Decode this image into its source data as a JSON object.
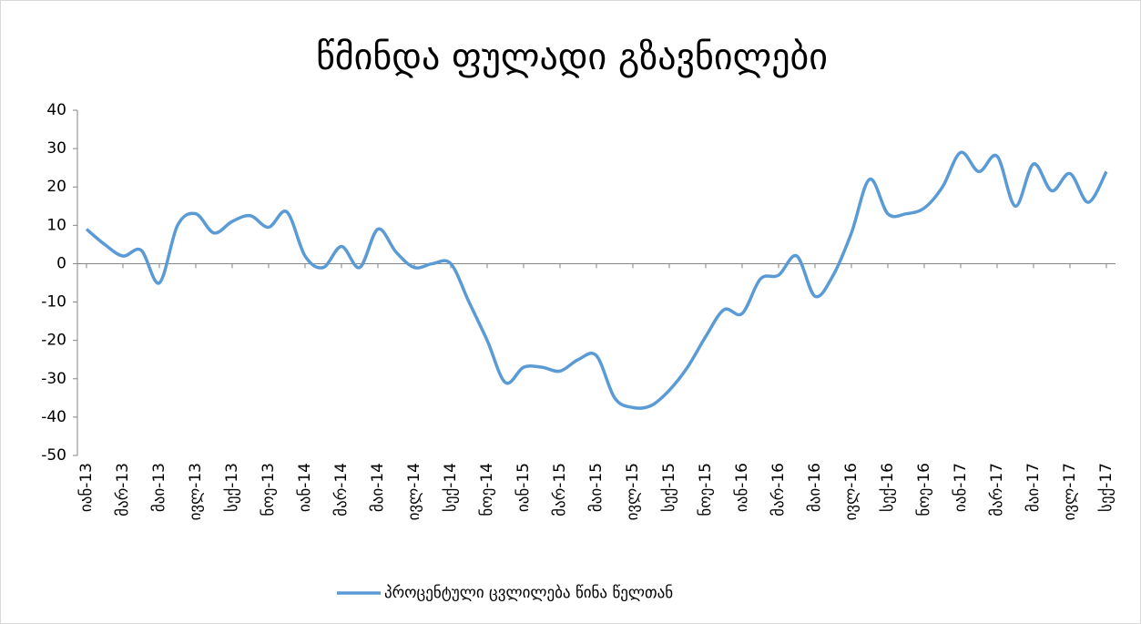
{
  "chart_data": {
    "type": "line",
    "title": "წმინდა ფულადი გზავნილები",
    "categories": [
      "იან-13",
      null,
      "მარ-13",
      null,
      "მაი-13",
      null,
      "ივლ-13",
      null,
      "სექ-13",
      null,
      "ნოე-13",
      null,
      "იან-14",
      null,
      "მარ-14",
      null,
      "მაი-14",
      null,
      "ივლ-14",
      null,
      "სექ-14",
      null,
      "ნოე-14",
      null,
      "იან-15",
      null,
      "მარ-15",
      null,
      "მაი-15",
      null,
      "ივლ-15",
      null,
      "სექ-15",
      null,
      "ნოე-15",
      null,
      "იან-16",
      null,
      "მარ-16",
      null,
      "მაი-16",
      null,
      "ივლ-16",
      null,
      "სექ-16",
      null,
      "ნოე-16",
      null,
      "იან-17",
      null,
      "მარ-17",
      null,
      "მაი-17",
      null,
      "ივლ-17",
      null,
      "სექ-17"
    ],
    "series": [
      {
        "name": "პროცენტული ცვლილება წინა წელთან",
        "color": "#5b9bd5",
        "values": [
          9,
          5,
          2,
          3.5,
          -5,
          10,
          13,
          8,
          11,
          12.5,
          9.5,
          13.5,
          2,
          -1,
          4.5,
          -1,
          9,
          3,
          -1,
          0,
          0,
          -10,
          -20,
          -31,
          -27,
          -27,
          -28,
          -25,
          -24,
          -35,
          -37.5,
          -37,
          -33,
          -27,
          -19,
          -12,
          -13,
          -4,
          -3,
          2,
          -8.5,
          -3,
          8,
          22,
          13,
          13,
          14.5,
          20,
          29,
          24,
          28,
          15,
          26,
          19,
          23.5,
          16,
          24
        ]
      }
    ],
    "ylim": [
      -50,
      40
    ],
    "yticks": [
      -50,
      -40,
      -30,
      -20,
      -10,
      0,
      10,
      20,
      30,
      40
    ],
    "legend": "bottom"
  }
}
